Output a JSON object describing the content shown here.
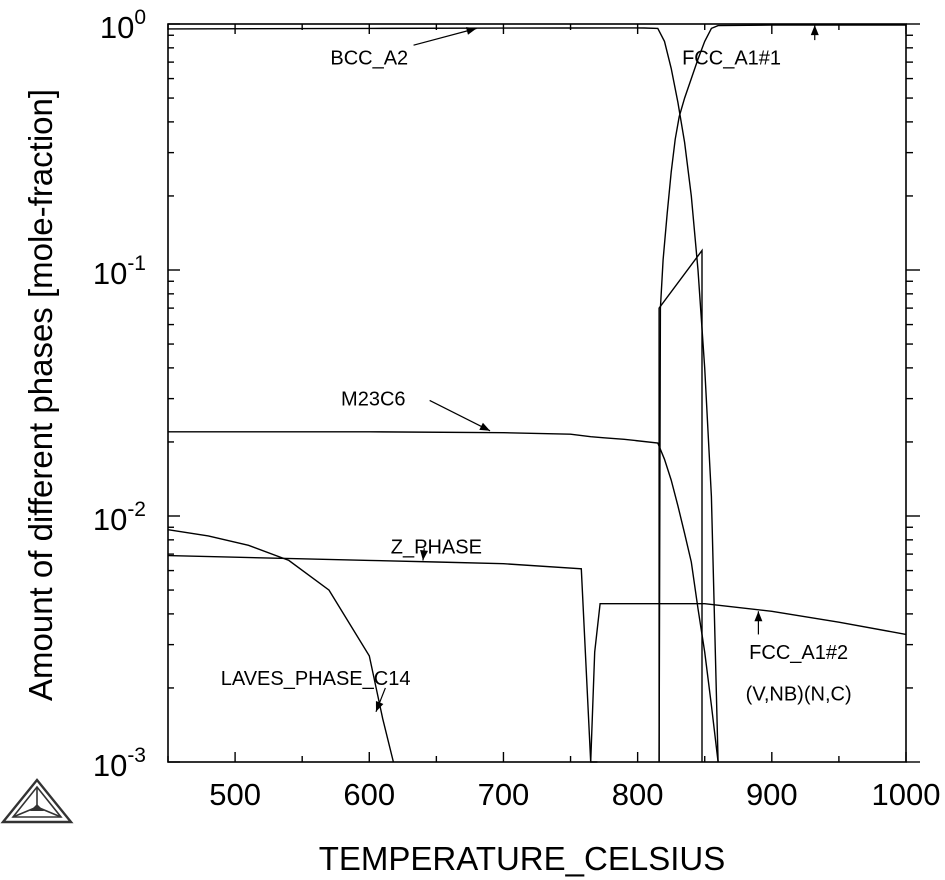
{
  "chart_data": {
    "type": "line",
    "title": "",
    "xlabel": "TEMPERATURE_CELSIUS",
    "ylabel": "Amount of different phases [mole-fraction]",
    "xlim": [
      450,
      1000
    ],
    "ylim": [
      0.001,
      1
    ],
    "yscale": "log",
    "grid": false,
    "legend": "none",
    "x_ticks": [
      500,
      600,
      700,
      800,
      900,
      1000
    ],
    "y_ticks": [
      {
        "value": 0.001,
        "base": "10",
        "exp": "-3"
      },
      {
        "value": 0.01,
        "base": "10",
        "exp": "-2"
      },
      {
        "value": 0.1,
        "base": "10",
        "exp": "-1"
      },
      {
        "value": 1,
        "base": "10",
        "exp": "0"
      }
    ],
    "series": [
      {
        "x": [
          450,
          600,
          700,
          750,
          790,
          805,
          815,
          820,
          825,
          830,
          835,
          840,
          845,
          850,
          855,
          860
        ],
        "y": [
          0.955,
          0.96,
          0.962,
          0.963,
          0.964,
          0.963,
          0.96,
          0.85,
          0.66,
          0.48,
          0.33,
          0.2,
          0.1,
          0.04,
          0.012,
          0.001
        ]
      },
      {
        "x": [
          816,
          817,
          819,
          822,
          825,
          828,
          831,
          835,
          840,
          845,
          850,
          855,
          860,
          900,
          950,
          1000
        ],
        "y": [
          0.001,
          0.07,
          0.11,
          0.17,
          0.25,
          0.34,
          0.42,
          0.5,
          0.6,
          0.72,
          0.85,
          0.96,
          0.985,
          0.99,
          0.99,
          0.99
        ]
      },
      {
        "x": [
          450,
          600,
          700,
          750,
          765,
          775,
          790,
          815,
          820,
          825,
          830,
          835,
          840,
          845,
          850,
          855,
          860
        ],
        "y": [
          0.022,
          0.022,
          0.0218,
          0.0215,
          0.021,
          0.0208,
          0.0205,
          0.0198,
          0.017,
          0.014,
          0.011,
          0.0085,
          0.0065,
          0.0042,
          0.0028,
          0.0017,
          0.001
        ]
      },
      {
        "x": [
          450,
          500,
          550,
          600,
          650,
          700,
          758,
          765,
          768,
          770
        ],
        "y": [
          0.0069,
          0.0068,
          0.0067,
          0.0066,
          0.0065,
          0.0064,
          0.0061,
          0.001,
          0.001,
          0.001
        ]
      },
      {
        "x": [
          450,
          480,
          510,
          540,
          570,
          600,
          610,
          618
        ],
        "y": [
          0.0088,
          0.0083,
          0.0076,
          0.0066,
          0.005,
          0.0027,
          0.0015,
          0.001
        ]
      },
      {
        "x": [
          765,
          768,
          772,
          800,
          850,
          900,
          950,
          1000
        ],
        "y": [
          0.001,
          0.0028,
          0.0044,
          0.0044,
          0.0044,
          0.0041,
          0.0037,
          0.0033
        ]
      },
      {
        "x": [
          816,
          816,
          848,
          848
        ],
        "y": [
          0.001,
          0.07,
          0.12,
          0.001
        ]
      }
    ],
    "annotations": [
      {
        "text": "BCC_A2",
        "text_x": 600,
        "text_y": 0.73,
        "arrow_from": [
          633,
          0.82
        ],
        "arrow_to": [
          680,
          0.96
        ]
      },
      {
        "text": "FCC_A1#1",
        "text_x": 870,
        "text_y": 0.73,
        "arrow_from": [
          932,
          0.86
        ],
        "arrow_to": [
          932,
          0.99
        ]
      },
      {
        "text": "M23C6",
        "text_x": 603,
        "text_y": 0.03,
        "arrow_from": [
          645,
          0.0295
        ],
        "arrow_to": [
          690,
          0.0222
        ]
      },
      {
        "text": "Z_PHASE",
        "text_x": 650,
        "text_y": 0.0075,
        "arrow_from": [
          641,
          0.0074
        ],
        "arrow_to": [
          640,
          0.0066
        ]
      },
      {
        "text": "LAVES_PHASE_C14",
        "text_x": 560,
        "text_y": 0.0022,
        "arrow_from": [
          612,
          0.002
        ],
        "arrow_to": [
          605,
          0.0016
        ]
      },
      {
        "text": "FCC_A1#2",
        "text_x": 920,
        "text_y": 0.0028,
        "arrow_from": [
          890,
          0.0033
        ],
        "arrow_to": [
          890,
          0.0041
        ]
      },
      {
        "text": "(V,NB)(N,C)",
        "text_x": 920,
        "text_y": 0.0019
      }
    ]
  }
}
